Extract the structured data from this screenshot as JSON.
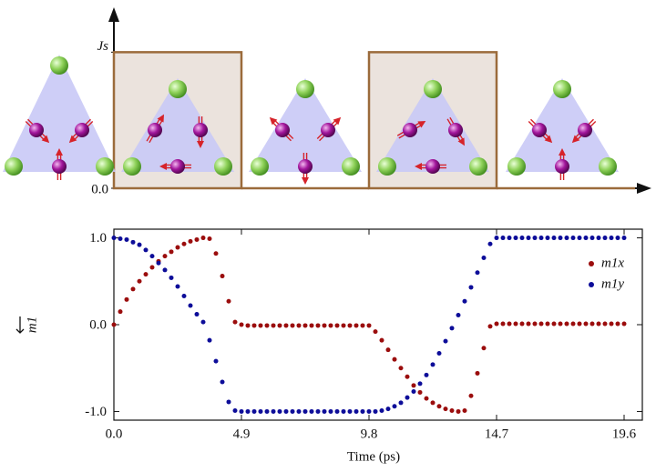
{
  "chart_data": [
    {
      "type": "step",
      "x": [
        0,
        4.9,
        9.8,
        14.7
      ],
      "values": [
        1,
        0,
        1,
        0
      ],
      "xlim": [
        0,
        20.65
      ],
      "ylim": [
        0,
        1.33
      ],
      "yticks": [
        {
          "value": 0,
          "label": "0.0"
        },
        {
          "value": 1,
          "label": "Js"
        }
      ],
      "color": "#9b6b3b"
    },
    {
      "type": "scatter",
      "x_label": "Time (ps)",
      "y_label": "m1",
      "x": [
        0,
        0.245,
        0.49,
        0.735,
        0.98,
        1.225,
        1.47,
        1.715,
        1.96,
        2.205,
        2.45,
        2.695,
        2.94,
        3.185,
        3.43,
        3.675,
        3.92,
        4.165,
        4.41,
        4.655,
        4.9,
        5.145,
        5.39,
        5.635,
        5.88,
        6.125,
        6.37,
        6.615,
        6.86,
        7.105,
        7.35,
        7.595,
        7.84,
        8.085,
        8.33,
        8.575,
        8.82,
        9.065,
        9.31,
        9.555,
        9.8,
        10.045,
        10.29,
        10.535,
        10.78,
        11.025,
        11.27,
        11.515,
        11.76,
        12.005,
        12.25,
        12.495,
        12.74,
        12.985,
        13.23,
        13.475,
        13.72,
        13.965,
        14.21,
        14.455,
        14.7,
        14.945,
        15.19,
        15.435,
        15.68,
        15.925,
        16.17,
        16.415,
        16.66,
        16.905,
        17.15,
        17.395,
        17.64,
        17.885,
        18.13,
        18.375,
        18.62,
        18.865,
        19.11,
        19.355,
        19.6
      ],
      "series": [
        {
          "name": "m1x",
          "color": "#9b0d0d",
          "values": [
            0,
            0.15,
            0.29,
            0.41,
            0.5,
            0.58,
            0.66,
            0.73,
            0.79,
            0.84,
            0.89,
            0.93,
            0.96,
            0.98,
            1.0,
            0.99,
            0.82,
            0.56,
            0.27,
            0.03,
            0.0,
            -0.01,
            -0.01,
            -0.01,
            -0.01,
            -0.01,
            -0.01,
            -0.01,
            -0.01,
            -0.01,
            -0.01,
            -0.01,
            -0.01,
            -0.01,
            -0.01,
            -0.01,
            -0.01,
            -0.01,
            -0.01,
            -0.01,
            -0.01,
            -0.08,
            -0.18,
            -0.29,
            -0.4,
            -0.5,
            -0.6,
            -0.7,
            -0.78,
            -0.85,
            -0.9,
            -0.94,
            -0.97,
            -0.99,
            -1.0,
            -0.99,
            -0.82,
            -0.56,
            -0.27,
            -0.02,
            0.01,
            0.01,
            0.01,
            0.01,
            0.01,
            0.01,
            0.01,
            0.01,
            0.01,
            0.01,
            0.01,
            0.01,
            0.01,
            0.01,
            0.01,
            0.01,
            0.01,
            0.01,
            0.01,
            0.01,
            0.01
          ]
        },
        {
          "name": "m1y",
          "color": "#0d0d99",
          "values": [
            1,
            0.99,
            0.98,
            0.95,
            0.92,
            0.86,
            0.79,
            0.71,
            0.63,
            0.54,
            0.44,
            0.33,
            0.22,
            0.12,
            0.03,
            -0.18,
            -0.42,
            -0.66,
            -0.89,
            -0.99,
            -1.0,
            -1.0,
            -1.0,
            -1.0,
            -1.0,
            -1.0,
            -1.0,
            -1.0,
            -1.0,
            -1.0,
            -1.0,
            -1.0,
            -1.0,
            -1.0,
            -1.0,
            -1.0,
            -1.0,
            -1.0,
            -1.0,
            -1.0,
            -1.0,
            -1.0,
            -0.99,
            -0.97,
            -0.94,
            -0.9,
            -0.84,
            -0.77,
            -0.68,
            -0.58,
            -0.46,
            -0.33,
            -0.19,
            -0.04,
            0.11,
            0.27,
            0.43,
            0.6,
            0.77,
            0.93,
            1.0,
            1.0,
            1.0,
            1.0,
            1.0,
            1.0,
            1.0,
            1.0,
            1.0,
            1.0,
            1.0,
            1.0,
            1.0,
            1.0,
            1.0,
            1.0,
            1.0,
            1.0,
            1.0,
            1.0,
            1.0
          ]
        }
      ],
      "xlim": [
        0,
        20.3
      ],
      "ylim": [
        -1.1,
        1.1
      ],
      "xticks": [
        {
          "value": 0,
          "label": "0.0"
        },
        4.9,
        9.8,
        14.7,
        19.6
      ],
      "yticks": [
        {
          "value": -1,
          "label": "-1.0"
        },
        {
          "value": 0,
          "label": "0.0"
        },
        {
          "value": 1,
          "label": "1.0"
        }
      ],
      "legend": "upper right"
    }
  ]
}
